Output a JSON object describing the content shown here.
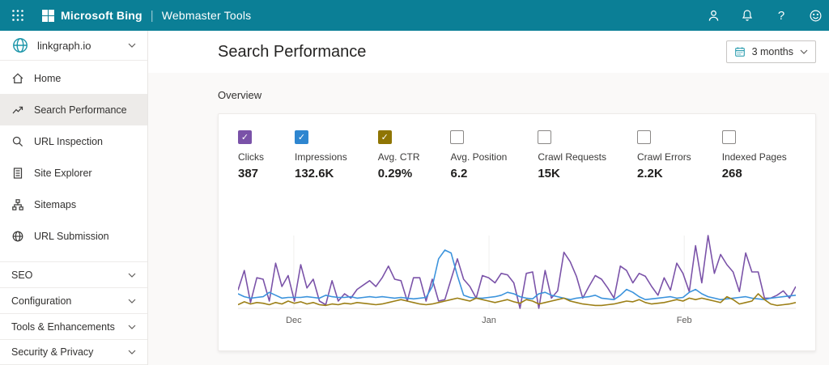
{
  "topbar": {
    "brand": "Microsoft Bing",
    "separator": "|",
    "product": "Webmaster Tools",
    "help_glyph": "?"
  },
  "sidebar": {
    "site": "linkgraph.io",
    "items": [
      {
        "label": "Home",
        "icon": "home-icon",
        "active": false
      },
      {
        "label": "Search Performance",
        "icon": "trending-icon",
        "active": true
      },
      {
        "label": "URL Inspection",
        "icon": "search-icon",
        "active": false
      },
      {
        "label": "Site Explorer",
        "icon": "document-list-icon",
        "active": false
      },
      {
        "label": "Sitemaps",
        "icon": "sitemap-icon",
        "active": false
      },
      {
        "label": "URL Submission",
        "icon": "globe-icon",
        "active": false
      }
    ],
    "sections": [
      {
        "label": "SEO"
      },
      {
        "label": "Configuration"
      },
      {
        "label": "Tools & Enhancements"
      },
      {
        "label": "Security & Privacy"
      }
    ]
  },
  "header": {
    "title": "Search Performance",
    "date_range": "3 months"
  },
  "overview": {
    "label": "Overview",
    "metrics": [
      {
        "label": "Clicks",
        "value": "387",
        "checked": true,
        "color": "#7A52A8"
      },
      {
        "label": "Impressions",
        "value": "132.6K",
        "checked": true,
        "color": "#2E86D0"
      },
      {
        "label": "Avg. CTR",
        "value": "0.29%",
        "checked": true,
        "color": "#8F7503"
      },
      {
        "label": "Avg. Position",
        "value": "6.2",
        "checked": false,
        "color": null
      },
      {
        "label": "Crawl Requests",
        "value": "15K",
        "checked": false,
        "color": null
      },
      {
        "label": "Crawl Errors",
        "value": "2.2K",
        "checked": false,
        "color": null
      },
      {
        "label": "Indexed Pages",
        "value": "268",
        "checked": false,
        "color": null
      }
    ]
  },
  "chart_data": {
    "type": "line",
    "note": "No y-axis shown in UI; values are relative heights 0-100 of plot area over ~90 daily points (3 months)",
    "x_axis_labels": [
      {
        "label": "Dec",
        "position_pct": 10
      },
      {
        "label": "Jan",
        "position_pct": 45
      },
      {
        "label": "Feb",
        "position_pct": 80
      }
    ],
    "legend_position": "none (legend is the metric checkboxes above)",
    "grid": "faint vertical month lines + bottom baseline",
    "series": [
      {
        "name": "Clicks",
        "color": "#7A52A8",
        "values": [
          25,
          52,
          8,
          42,
          40,
          10,
          62,
          30,
          45,
          10,
          60,
          28,
          40,
          10,
          5,
          38,
          10,
          20,
          14,
          26,
          32,
          38,
          30,
          42,
          58,
          40,
          38,
          10,
          42,
          42,
          10,
          40,
          10,
          12,
          40,
          68,
          40,
          30,
          14,
          45,
          42,
          35,
          48,
          46,
          35,
          0,
          48,
          50,
          0,
          52,
          14,
          24,
          77,
          64,
          44,
          14,
          30,
          45,
          40,
          28,
          14,
          58,
          52,
          35,
          48,
          44,
          30,
          18,
          42,
          25,
          62,
          48,
          23,
          86,
          35,
          100,
          48,
          74,
          60,
          50,
          23,
          76,
          50,
          50,
          14,
          14,
          18,
          24,
          14,
          30
        ]
      },
      {
        "name": "Impressions",
        "color": "#3B93DC",
        "values": [
          20,
          16,
          14,
          15,
          16,
          22,
          18,
          14,
          15,
          15,
          15,
          16,
          15,
          14,
          18,
          16,
          15,
          15,
          16,
          14,
          15,
          16,
          15,
          16,
          15,
          14,
          15,
          14,
          13,
          14,
          15,
          30,
          68,
          80,
          76,
          45,
          18,
          15,
          14,
          14,
          15,
          16,
          18,
          22,
          20,
          16,
          14,
          13,
          20,
          22,
          18,
          16,
          14,
          12,
          14,
          15,
          16,
          18,
          14,
          13,
          12,
          18,
          26,
          22,
          16,
          12,
          13,
          14,
          15,
          16,
          14,
          15,
          22,
          26,
          20,
          16,
          14,
          12,
          13,
          14,
          15,
          16,
          14,
          13,
          12,
          14,
          15,
          16,
          17,
          18
        ]
      },
      {
        "name": "Avg. CTR",
        "color": "#9C7F16",
        "values": [
          5,
          9,
          6,
          8,
          7,
          5,
          8,
          6,
          10,
          7,
          9,
          6,
          8,
          5,
          4,
          6,
          5,
          7,
          6,
          8,
          7,
          6,
          5,
          6,
          8,
          10,
          12,
          10,
          8,
          6,
          5,
          6,
          8,
          10,
          12,
          14,
          12,
          10,
          14,
          12,
          10,
          8,
          10,
          12,
          9,
          7,
          12,
          10,
          6,
          8,
          10,
          12,
          14,
          10,
          8,
          6,
          5,
          4,
          4,
          5,
          6,
          8,
          10,
          9,
          12,
          8,
          6,
          7,
          8,
          10,
          12,
          10,
          14,
          12,
          14,
          12,
          10,
          8,
          16,
          12,
          6,
          8,
          10,
          20,
          12,
          6,
          4,
          5,
          6,
          8
        ]
      }
    ]
  },
  "colors": {
    "topbar": "#0B7F96",
    "accent_teal": "#1B95A9",
    "selected_nav_bg": "#EDEBE9",
    "content_bg": "#FAF9F8"
  }
}
